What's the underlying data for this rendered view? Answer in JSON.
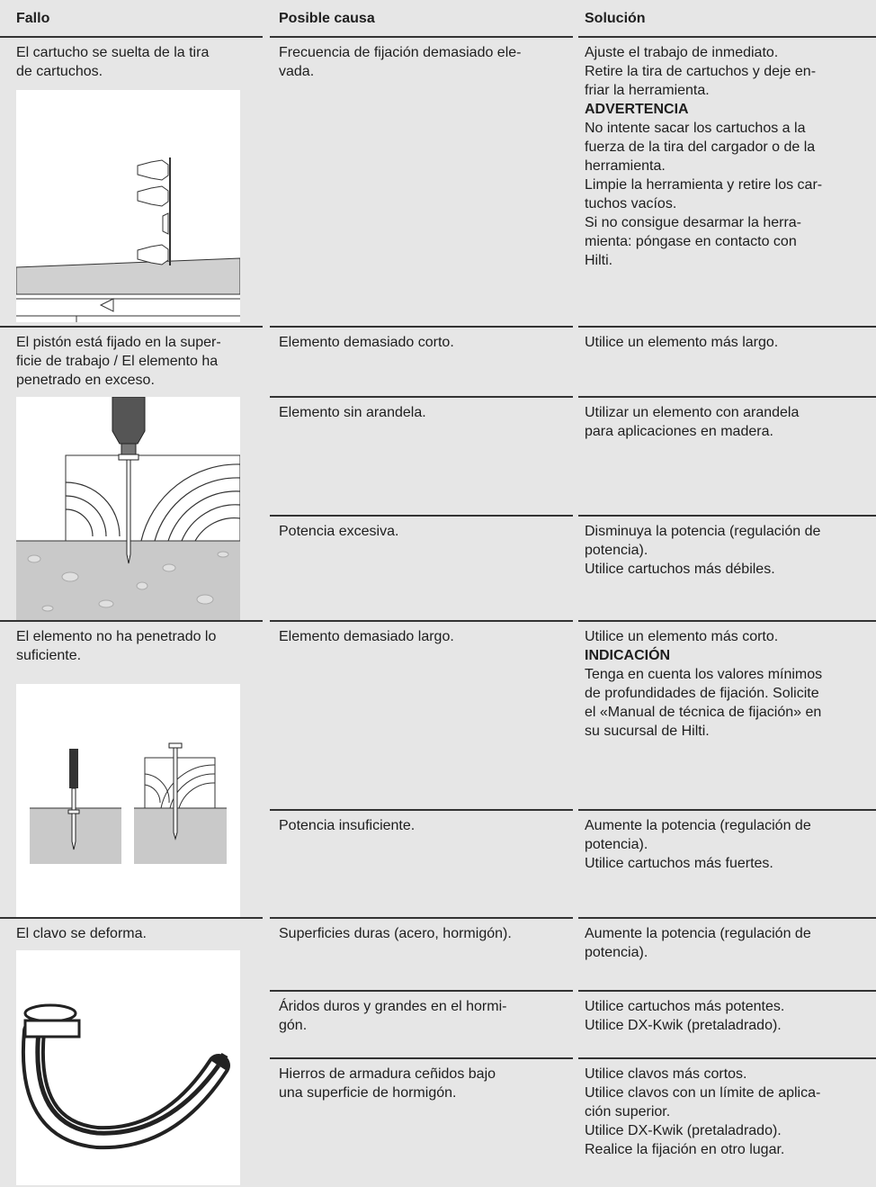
{
  "header": {
    "fault": "Fallo",
    "cause": "Posible causa",
    "solution": "Solución"
  },
  "rows": [
    {
      "fault": [
        "El cartucho se suelta de la tira",
        "de cartuchos."
      ],
      "causes": [
        {
          "cause": [
            "Frecuencia de fijación demasiado ele-",
            "vada."
          ],
          "solution": [
            "Ajuste el trabajo de inmediato.",
            "Retire la tira de cartuchos y deje en-",
            "friar la herramienta."
          ],
          "note": {
            "heading": "ADVERTENCIA",
            "lines": [
              "No intente sacar los cartuchos a la",
              "fuerza de la tira del cargador o de la",
              "herramienta.",
              "Limpie la herramienta y retire los car-",
              "tuchos vacíos.",
              "Si no consigue desarmar la herra-",
              "mienta: póngase en contacto con",
              "Hilti."
            ]
          }
        }
      ]
    },
    {
      "fault": [
        "El pistón está fijado en la super-",
        "ficie de trabajo / El elemento ha",
        "penetrado en exceso."
      ],
      "causes": [
        {
          "cause": [
            "Elemento demasiado corto."
          ],
          "solution": [
            "Utilice un elemento más largo."
          ]
        },
        {
          "cause": [
            "Elemento sin arandela."
          ],
          "solution": [
            "Utilizar un elemento con arandela",
            "para aplicaciones en madera."
          ]
        },
        {
          "cause": [
            "Potencia excesiva."
          ],
          "solution": [
            "Disminuya la potencia (regulación de",
            "potencia).",
            "Utilice cartuchos más débiles."
          ]
        }
      ]
    },
    {
      "fault": [
        "El elemento no ha penetrado lo",
        "suficiente."
      ],
      "causes": [
        {
          "cause": [
            "Elemento demasiado largo."
          ],
          "solution": [
            "Utilice un elemento más corto."
          ],
          "note": {
            "heading": "INDICACIÓN",
            "lines": [
              "Tenga en cuenta los valores mínimos",
              "de profundidades de fijación. Solicite",
              "el «Manual de técnica de fijación» en",
              "su sucursal de Hilti."
            ]
          }
        },
        {
          "cause": [
            "Potencia insuficiente."
          ],
          "solution": [
            "Aumente la potencia (regulación de",
            "potencia).",
            "Utilice cartuchos más fuertes."
          ]
        }
      ]
    },
    {
      "fault": [
        "El clavo se deforma."
      ],
      "causes": [
        {
          "cause": [
            "Superficies duras (acero, hormigón)."
          ],
          "solution": [
            "Aumente la potencia (regulación de",
            "potencia)."
          ]
        },
        {
          "cause": [
            "Áridos duros y grandes en el hormi-",
            "gón."
          ],
          "solution": [
            "Utilice cartuchos más potentes.",
            "Utilice DX-Kwik (pretaladrado)."
          ]
        },
        {
          "cause": [
            "Hierros de armadura ceñidos bajo",
            "una superficie de hormigón."
          ],
          "solution": [
            "Utilice clavos más cortos.",
            "Utilice clavos con un límite de aplica-",
            "ción superior.",
            "Utilice DX-Kwik (pretaladrado).",
            "Realice la fijación en otro lugar."
          ]
        }
      ]
    }
  ]
}
